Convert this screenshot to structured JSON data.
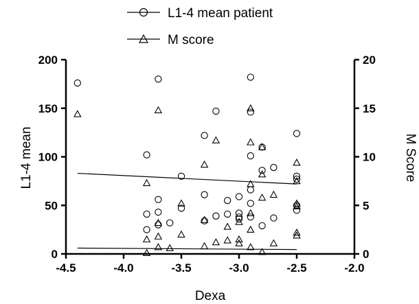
{
  "chart_data": {
    "type": "scatter",
    "xlabel": "Dexa",
    "ylabel_left": "L1-4 mean",
    "ylabel_right": "M Score",
    "xlim": [
      -4.5,
      -2.0
    ],
    "xticks": [
      -4.5,
      -4.0,
      -3.5,
      -3.0,
      -2.5,
      -2.0
    ],
    "xtick_labels": [
      "-4.5",
      "-4.0",
      "-3.5",
      "-3.0",
      "-2.5",
      "-2.0"
    ],
    "ylim_left": [
      0,
      200
    ],
    "yticks_left": [
      0,
      50,
      100,
      150,
      200
    ],
    "yticks_left_labels": [
      "0",
      "50",
      "100",
      "150",
      "200"
    ],
    "ylim_right": [
      0,
      20
    ],
    "yticks_right": [
      0,
      5,
      10,
      15,
      20
    ],
    "yticks_right_labels": [
      "0",
      "5",
      "10",
      "15",
      "20"
    ],
    "grid": false,
    "legend_position": "top-center",
    "series": [
      {
        "name": "L1-4 mean patient",
        "axis": "left",
        "marker": "circle",
        "points": [
          [
            -4.4,
            176
          ],
          [
            -3.8,
            102
          ],
          [
            -3.8,
            41
          ],
          [
            -3.8,
            25
          ],
          [
            -3.7,
            180
          ],
          [
            -3.7,
            56
          ],
          [
            -3.7,
            43
          ],
          [
            -3.7,
            30
          ],
          [
            -3.6,
            32
          ],
          [
            -3.5,
            80
          ],
          [
            -3.5,
            47
          ],
          [
            -3.3,
            122
          ],
          [
            -3.3,
            61
          ],
          [
            -3.3,
            34
          ],
          [
            -3.2,
            147
          ],
          [
            -3.2,
            39
          ],
          [
            -3.1,
            55
          ],
          [
            -3.1,
            41
          ],
          [
            -3.0,
            59
          ],
          [
            -3.0,
            42
          ],
          [
            -3.0,
            38
          ],
          [
            -3.0,
            36
          ],
          [
            -2.9,
            182
          ],
          [
            -2.9,
            146
          ],
          [
            -2.9,
            101
          ],
          [
            -2.9,
            66
          ],
          [
            -2.9,
            52
          ],
          [
            -2.9,
            38
          ],
          [
            -2.8,
            110
          ],
          [
            -2.8,
            86
          ],
          [
            -2.8,
            29
          ],
          [
            -2.7,
            89
          ],
          [
            -2.7,
            37
          ],
          [
            -2.5,
            124
          ],
          [
            -2.5,
            80
          ],
          [
            -2.5,
            77
          ],
          [
            -2.5,
            50
          ],
          [
            -2.5,
            45
          ]
        ],
        "trend": {
          "x": [
            -4.4,
            -2.5
          ],
          "y": [
            83,
            72
          ]
        }
      },
      {
        "name": "M score",
        "axis": "right",
        "marker": "triangle",
        "points": [
          [
            -4.4,
            14.4
          ],
          [
            -3.8,
            7.3
          ],
          [
            -3.8,
            1.5
          ],
          [
            -3.8,
            0.1
          ],
          [
            -3.7,
            14.8
          ],
          [
            -3.7,
            3.2
          ],
          [
            -3.7,
            1.8
          ],
          [
            -3.7,
            0.7
          ],
          [
            -3.6,
            0.6
          ],
          [
            -3.5,
            5.2
          ],
          [
            -3.5,
            2.0
          ],
          [
            -3.3,
            9.2
          ],
          [
            -3.3,
            3.5
          ],
          [
            -3.3,
            0.8
          ],
          [
            -3.2,
            11.7
          ],
          [
            -3.2,
            1.2
          ],
          [
            -3.1,
            2.8
          ],
          [
            -3.1,
            1.4
          ],
          [
            -3.0,
            3.3
          ],
          [
            -3.0,
            1.5
          ],
          [
            -3.0,
            1.1
          ],
          [
            -2.9,
            15.0
          ],
          [
            -2.9,
            11.5
          ],
          [
            -2.9,
            7.2
          ],
          [
            -2.9,
            4.2
          ],
          [
            -2.9,
            2.5
          ],
          [
            -2.9,
            0.7
          ],
          [
            -2.8,
            11.0
          ],
          [
            -2.8,
            8.2
          ],
          [
            -2.8,
            5.8
          ],
          [
            -2.8,
            0.2
          ],
          [
            -2.7,
            6.1
          ],
          [
            -2.7,
            1.1
          ],
          [
            -2.5,
            9.4
          ],
          [
            -2.5,
            7.5
          ],
          [
            -2.5,
            5.2
          ],
          [
            -2.5,
            4.9
          ],
          [
            -2.5,
            2.2
          ],
          [
            -2.5,
            1.9
          ]
        ],
        "trend": {
          "x": [
            -4.4,
            -2.5
          ],
          "y": [
            0.6,
            0.45
          ]
        }
      }
    ]
  }
}
